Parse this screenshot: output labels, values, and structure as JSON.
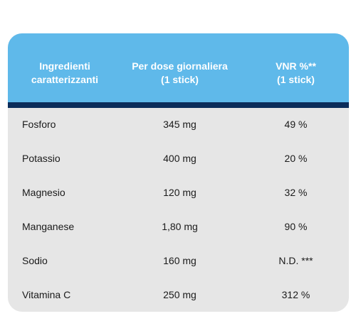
{
  "header": {
    "col1": [
      "Ingredienti",
      "caratterizzanti"
    ],
    "col2": [
      "Per dose giornaliera",
      "(1 stick)"
    ],
    "col3": [
      "VNR %**",
      "(1 stick)"
    ]
  },
  "rows": [
    {
      "name": "Fosforo",
      "dose": "345 mg",
      "vnr": "49 %"
    },
    {
      "name": "Potassio",
      "dose": "400 mg",
      "vnr": "20 %"
    },
    {
      "name": "Magnesio",
      "dose": "120 mg",
      "vnr": "32 %"
    },
    {
      "name": "Manganese",
      "dose": "1,80 mg",
      "vnr": "90 %"
    },
    {
      "name": "Sodio",
      "dose": "160 mg",
      "vnr": "N.D. ***"
    },
    {
      "name": "Vitamina C",
      "dose": "250 mg",
      "vnr": "312 %"
    }
  ],
  "colors": {
    "header_bg": "#5fb9ea",
    "divider": "#0b2d5b",
    "body_bg": "#e6e6e6"
  }
}
